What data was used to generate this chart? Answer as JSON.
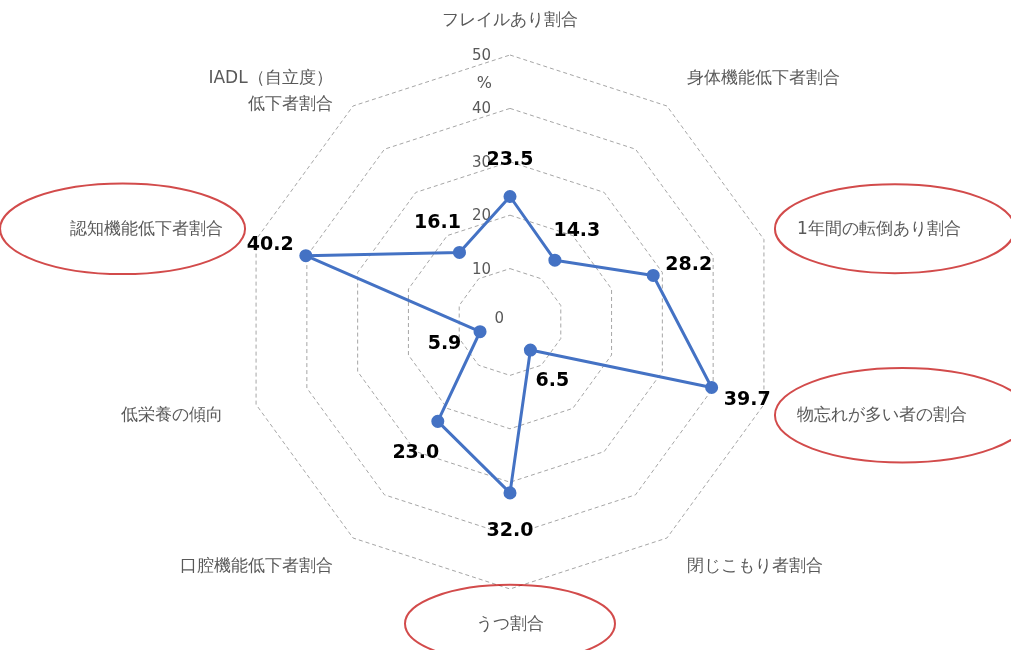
{
  "chart_data": {
    "type": "radar",
    "ylabel": "%",
    "categories": [
      "フレイルあり割合",
      "身体機能低下者割合",
      "1年間の転倒あり割合",
      "物忘れが多い者の割合",
      "閉じこもり者割合",
      "うつ割合",
      "口腔機能低下者割合",
      "低栄養の傾向",
      "認知機能低下者割合",
      "IADL（自立度）低下者割合"
    ],
    "ylim": [
      0,
      50
    ],
    "yticks": [
      0,
      10,
      20,
      30,
      40,
      50
    ],
    "grid": true,
    "marker": "circle",
    "line_style": "solid",
    "series": [
      {
        "color": "#4472c4",
        "values": [
          23.5,
          14.3,
          28.2,
          39.7,
          6.5,
          32.0,
          23.0,
          5.9,
          40.2,
          16.1
        ],
        "value_labels": [
          "23.5",
          "14.3",
          "28.2",
          "39.7",
          "6.5",
          "32.0",
          "23.0",
          "5.9",
          "40.2",
          "16.1"
        ]
      }
    ]
  }
}
